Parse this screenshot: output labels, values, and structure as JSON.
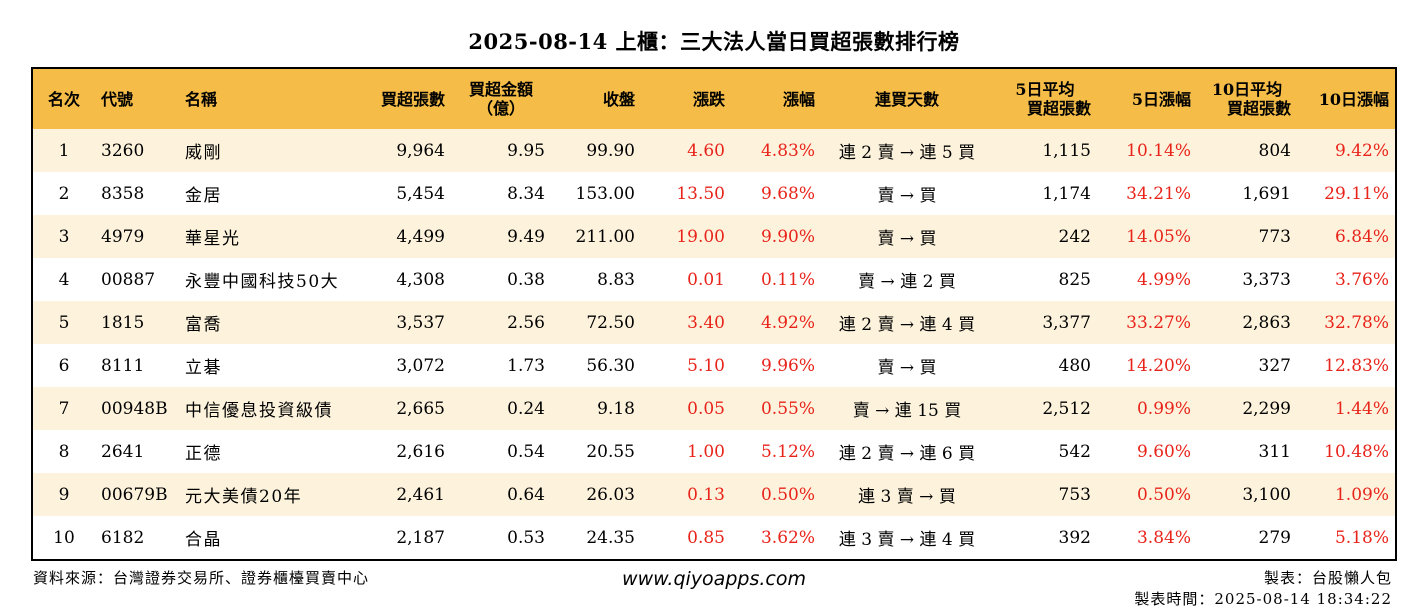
{
  "title": "2025-08-14 上櫃：三大法人當日買超張數排行榜",
  "table": {
    "headers": {
      "rank": "名次",
      "code": "代號",
      "name": "名稱",
      "buy_lots": "買超張數",
      "buy_amount_l1": "買超金額",
      "buy_amount_l2": "（億）",
      "close": "收盤",
      "change": "漲跌",
      "change_pct": "漲幅",
      "streak": "連買天數",
      "avg5_l1": "5日平均",
      "avg5_l2": "買超張數",
      "pct5": "5日漲幅",
      "avg10_l1": "10日平均",
      "avg10_l2": "買超張數",
      "pct10": "10日漲幅"
    },
    "rows": [
      {
        "rank": "1",
        "code": "3260",
        "name": "威剛",
        "buy_lots": "9,964",
        "buy_amount": "9.95",
        "close": "99.90",
        "change": "4.60",
        "change_pct": "4.83%",
        "streak": "連 2 賣 → 連 5 買",
        "avg5": "1,115",
        "pct5": "10.14%",
        "avg10": "804",
        "pct10": "9.42%"
      },
      {
        "rank": "2",
        "code": "8358",
        "name": "金居",
        "buy_lots": "5,454",
        "buy_amount": "8.34",
        "close": "153.00",
        "change": "13.50",
        "change_pct": "9.68%",
        "streak": "賣 → 買",
        "avg5": "1,174",
        "pct5": "34.21%",
        "avg10": "1,691",
        "pct10": "29.11%"
      },
      {
        "rank": "3",
        "code": "4979",
        "name": "華星光",
        "buy_lots": "4,499",
        "buy_amount": "9.49",
        "close": "211.00",
        "change": "19.00",
        "change_pct": "9.90%",
        "streak": "賣 → 買",
        "avg5": "242",
        "pct5": "14.05%",
        "avg10": "773",
        "pct10": "6.84%"
      },
      {
        "rank": "4",
        "code": "00887",
        "name": "永豐中國科技50大",
        "buy_lots": "4,308",
        "buy_amount": "0.38",
        "close": "8.83",
        "change": "0.01",
        "change_pct": "0.11%",
        "streak": "賣 → 連 2 買",
        "avg5": "825",
        "pct5": "4.99%",
        "avg10": "3,373",
        "pct10": "3.76%"
      },
      {
        "rank": "5",
        "code": "1815",
        "name": "富喬",
        "buy_lots": "3,537",
        "buy_amount": "2.56",
        "close": "72.50",
        "change": "3.40",
        "change_pct": "4.92%",
        "streak": "連 2 賣 → 連 4 買",
        "avg5": "3,377",
        "pct5": "33.27%",
        "avg10": "2,863",
        "pct10": "32.78%"
      },
      {
        "rank": "6",
        "code": "8111",
        "name": "立碁",
        "buy_lots": "3,072",
        "buy_amount": "1.73",
        "close": "56.30",
        "change": "5.10",
        "change_pct": "9.96%",
        "streak": "賣 → 買",
        "avg5": "480",
        "pct5": "14.20%",
        "avg10": "327",
        "pct10": "12.83%"
      },
      {
        "rank": "7",
        "code": "00948B",
        "name": "中信優息投資級債",
        "buy_lots": "2,665",
        "buy_amount": "0.24",
        "close": "9.18",
        "change": "0.05",
        "change_pct": "0.55%",
        "streak": "賣 → 連 15 買",
        "avg5": "2,512",
        "pct5": "0.99%",
        "avg10": "2,299",
        "pct10": "1.44%"
      },
      {
        "rank": "8",
        "code": "2641",
        "name": "正德",
        "buy_lots": "2,616",
        "buy_amount": "0.54",
        "close": "20.55",
        "change": "1.00",
        "change_pct": "5.12%",
        "streak": "連 2 賣 → 連 6 買",
        "avg5": "542",
        "pct5": "9.60%",
        "avg10": "311",
        "pct10": "10.48%"
      },
      {
        "rank": "9",
        "code": "00679B",
        "name": "元大美債20年",
        "buy_lots": "2,461",
        "buy_amount": "0.64",
        "close": "26.03",
        "change": "0.13",
        "change_pct": "0.50%",
        "streak": "連 3 賣 → 買",
        "avg5": "753",
        "pct5": "0.50%",
        "avg10": "3,100",
        "pct10": "1.09%"
      },
      {
        "rank": "10",
        "code": "6182",
        "name": "合晶",
        "buy_lots": "2,187",
        "buy_amount": "0.53",
        "close": "24.35",
        "change": "0.85",
        "change_pct": "3.62%",
        "streak": "連 3 賣 → 連 4 買",
        "avg5": "392",
        "pct5": "3.84%",
        "avg10": "279",
        "pct10": "5.18%"
      }
    ]
  },
  "footer": {
    "source": "資料來源：台灣證券交易所、證券櫃檯買賣中心",
    "website": "www.qiyoapps.com",
    "maker": "製表：台股懶人包",
    "made_time": "製表時間：2025-08-14 18:34:22"
  },
  "colors": {
    "header_bg": "#f5bd48",
    "stripe_bg": "#fdf3dd",
    "positive": "#e8231a"
  }
}
